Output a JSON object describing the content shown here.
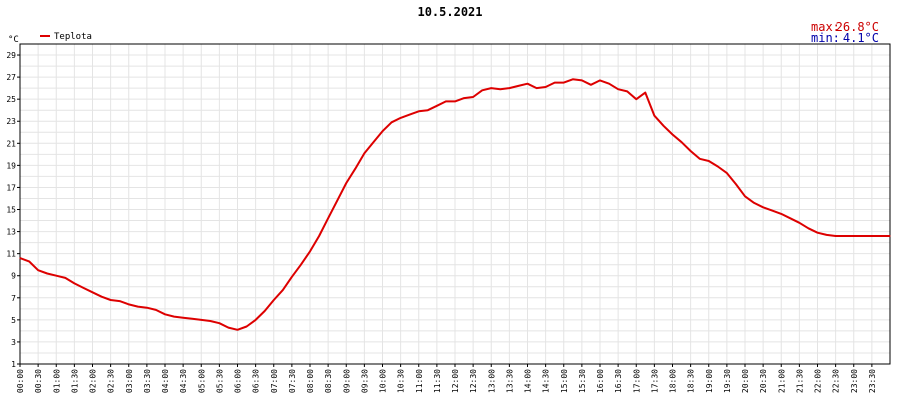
{
  "chart_data": {
    "type": "line",
    "title": "10.5.2021",
    "unit_label": "°C",
    "legend": [
      {
        "name": "Teplota",
        "color": "#dd0000"
      }
    ],
    "stats": {
      "max_label": "max:",
      "max_value": "26.8°C",
      "min_label": "min:",
      "min_value": "4.1°C",
      "max_color": "#cc0000",
      "min_color": "#0000aa"
    },
    "y_ticks": [
      "1",
      "3",
      "5",
      "7",
      "9",
      "11",
      "13",
      "15",
      "17",
      "19",
      "21",
      "23",
      "25",
      "27",
      "29"
    ],
    "ylim": [
      1,
      30
    ],
    "x_ticks": [
      "00:00",
      "00:30",
      "01:00",
      "01:30",
      "02:00",
      "02:30",
      "03:00",
      "03:30",
      "04:00",
      "04:30",
      "05:00",
      "05:30",
      "06:00",
      "06:30",
      "07:00",
      "07:30",
      "08:00",
      "08:30",
      "09:00",
      "09:30",
      "10:00",
      "10:30",
      "11:00",
      "11:30",
      "12:00",
      "12:30",
      "13:00",
      "13:30",
      "14:00",
      "14:30",
      "15:00",
      "15:30",
      "16:00",
      "16:30",
      "17:00",
      "17:30",
      "18:00",
      "18:30",
      "19:00",
      "19:30",
      "20:00",
      "20:30",
      "21:00",
      "21:30",
      "22:00",
      "22:30",
      "23:00",
      "23:30"
    ],
    "xlim_hours": [
      0,
      24
    ],
    "grid": true,
    "legend_position": "top-left",
    "series": [
      {
        "name": "Teplota",
        "color": "#dd0000",
        "x_hours": [
          0.0,
          0.25,
          0.5,
          0.75,
          1.0,
          1.25,
          1.5,
          1.75,
          2.0,
          2.25,
          2.5,
          2.75,
          3.0,
          3.25,
          3.5,
          3.75,
          4.0,
          4.25,
          4.5,
          4.75,
          5.0,
          5.25,
          5.5,
          5.75,
          6.0,
          6.25,
          6.5,
          6.75,
          7.0,
          7.25,
          7.5,
          7.75,
          8.0,
          8.25,
          8.5,
          8.75,
          9.0,
          9.25,
          9.5,
          9.75,
          10.0,
          10.25,
          10.5,
          10.75,
          11.0,
          11.25,
          11.5,
          11.75,
          12.0,
          12.25,
          12.5,
          12.75,
          13.0,
          13.25,
          13.5,
          13.75,
          14.0,
          14.25,
          14.5,
          14.75,
          15.0,
          15.25,
          15.5,
          15.75,
          16.0,
          16.25,
          16.5,
          16.75,
          17.0,
          17.25,
          17.5,
          17.75,
          18.0,
          18.25,
          18.5,
          18.75,
          19.0,
          19.25,
          19.5,
          19.75,
          20.0,
          20.25,
          20.5,
          20.75,
          21.0,
          21.25,
          21.5,
          21.75,
          22.0,
          22.25,
          22.5,
          22.75,
          23.0,
          23.25,
          23.5,
          23.75,
          24.0
        ],
        "values": [
          10.6,
          10.3,
          9.5,
          9.2,
          9.0,
          8.8,
          8.3,
          7.9,
          7.5,
          7.1,
          6.8,
          6.7,
          6.4,
          6.2,
          6.1,
          5.9,
          5.5,
          5.3,
          5.2,
          5.1,
          5.0,
          4.9,
          4.7,
          4.3,
          4.1,
          4.4,
          5.0,
          5.8,
          6.8,
          7.7,
          8.9,
          10.0,
          11.2,
          12.6,
          14.2,
          15.8,
          17.4,
          18.7,
          20.1,
          21.1,
          22.1,
          22.9,
          23.3,
          23.6,
          23.9,
          24.0,
          24.4,
          24.8,
          24.8,
          25.1,
          25.2,
          25.8,
          26.0,
          25.9,
          26.0,
          26.2,
          26.4,
          26.0,
          26.1,
          26.5,
          26.5,
          26.8,
          26.7,
          26.3,
          26.7,
          26.4,
          25.9,
          25.7,
          25.0,
          25.6,
          23.5,
          22.6,
          21.8,
          21.1,
          20.3,
          19.6,
          19.4,
          18.9,
          18.3,
          17.3,
          16.2,
          15.6,
          15.2,
          14.9,
          14.6,
          14.2,
          13.8,
          13.3,
          12.9,
          12.7,
          12.6,
          12.6,
          12.6,
          12.6,
          12.6,
          12.6,
          12.6
        ],
        "note_visible_range_end_hour": 24
      }
    ]
  }
}
